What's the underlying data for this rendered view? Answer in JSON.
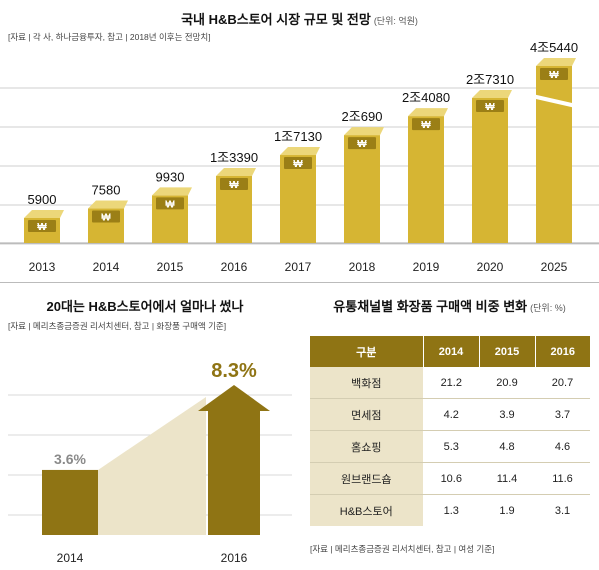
{
  "top": {
    "title": "국내 H&B스토어 시장 규모 및 전망",
    "unit": "(단위: 억원)",
    "source": "[자료 | 각 사, 하나금융투자, 참고 | 2018년 이후는 전망치]"
  },
  "left": {
    "title": "20대는 H&B스토어에서 얼마나 썼나",
    "source": "[자료 | 메리츠종금증권 리서치센터, 참고 | 화장품 구매액 기준]"
  },
  "right": {
    "title": "유통채널별 화장품 구매액 비중 변화",
    "unit": "(단위: %)",
    "source": "[자료 | 메리츠종금증권 리서치센터, 참고 | 여성 기준]"
  },
  "colors": {
    "gold": "#d6b533",
    "gold_light": "#ecd77a",
    "gold_dark": "#9b7f16",
    "olive": "#8f7414",
    "cream": "#ece4c9",
    "icon": "won-sign-icon"
  },
  "chart_data": [
    {
      "type": "bar",
      "categories": [
        "2013",
        "2014",
        "2015",
        "2016",
        "2017",
        "2018",
        "2019",
        "2020",
        "2025"
      ],
      "values": [
        5900,
        7580,
        9930,
        13390,
        17130,
        20690,
        24080,
        27310,
        45440
      ],
      "labels": [
        "5900",
        "7580",
        "9930",
        "1조3390",
        "1조7130",
        "2조690",
        "2조4080",
        "2조7310",
        "4조5440"
      ],
      "axis_break_before": "2025",
      "grid": true
    },
    {
      "type": "bar",
      "categories": [
        "2014",
        "2016"
      ],
      "values": [
        3.6,
        8.3
      ],
      "labels": [
        "3.6%",
        "8.3%"
      ]
    },
    {
      "type": "table",
      "columns": [
        "구분",
        "2014",
        "2015",
        "2016"
      ],
      "rows": [
        [
          "백화점",
          "21.2",
          "20.9",
          "20.7"
        ],
        [
          "면세점",
          "4.2",
          "3.9",
          "3.7"
        ],
        [
          "홈쇼핑",
          "5.3",
          "4.8",
          "4.6"
        ],
        [
          "원브랜드숍",
          "10.6",
          "11.4",
          "11.6"
        ],
        [
          "H&B스토어",
          "1.3",
          "1.9",
          "3.1"
        ]
      ]
    }
  ]
}
